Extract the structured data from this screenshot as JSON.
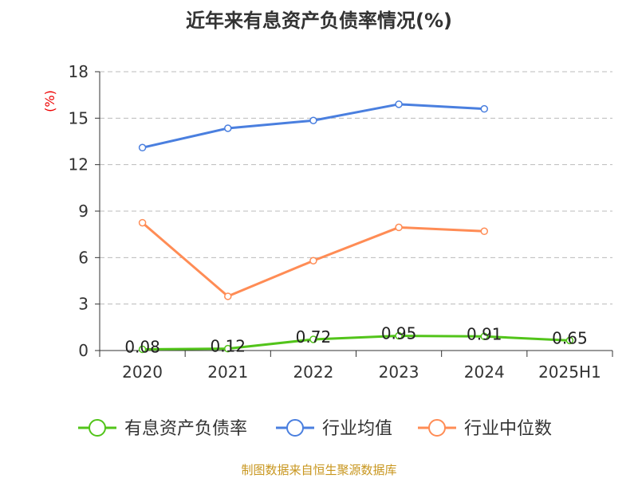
{
  "chart_data": {
    "type": "line",
    "title": "近年来有息资产负债率情况(%)",
    "ylabel": "(%)",
    "categories": [
      "2020",
      "2021",
      "2022",
      "2023",
      "2024",
      "2025H1"
    ],
    "ylim": [
      0,
      18
    ],
    "yticks": [
      0,
      3,
      6,
      9,
      12,
      15,
      18
    ],
    "grid": true,
    "legend_position": "bottom",
    "series": [
      {
        "name": "有息资产负债率",
        "color": "#52c41a",
        "values": [
          0.08,
          0.12,
          0.72,
          0.95,
          0.91,
          0.65
        ],
        "labels": [
          "0.08",
          "0.12",
          "0.72",
          "0.95",
          "0.91",
          "0.65"
        ]
      },
      {
        "name": "行业均值",
        "color": "#4a7fdf",
        "values": [
          13.1,
          14.35,
          14.85,
          15.9,
          15.6,
          null
        ]
      },
      {
        "name": "行业中位数",
        "color": "#ff8c55",
        "values": [
          8.25,
          3.5,
          5.8,
          7.95,
          7.7,
          null
        ]
      }
    ]
  },
  "source": "制图数据来自恒生聚源数据库"
}
